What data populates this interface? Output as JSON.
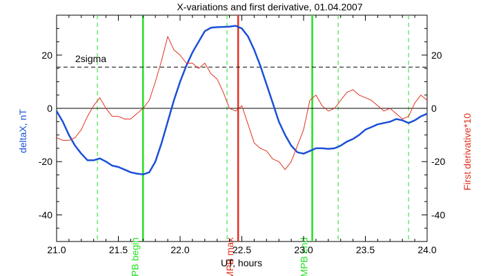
{
  "chart_data": {
    "type": "line",
    "title": "X-variations and first derivative, 01.04.2007",
    "xlabel": "UT, hours",
    "ylabel_left": "deltaX, nT",
    "ylabel_right": "First derivative*10",
    "xlim": [
      21.0,
      24.0
    ],
    "ylim": [
      -50,
      35
    ],
    "x_ticks": [
      21.0,
      21.5,
      22.0,
      22.5,
      23.0,
      23.5,
      24.0
    ],
    "x_tick_labels": [
      "21.0",
      "21.5",
      "22.0",
      "22.5",
      "23.0",
      "23.5",
      "24.0"
    ],
    "y_ticks": [
      -40,
      -20,
      0,
      20
    ],
    "y_tick_labels": [
      "-40",
      "-20",
      "0",
      "20"
    ],
    "grid": false,
    "colors": {
      "deltaX": "#1a4fd6",
      "derivative": "#e0301e",
      "mpb_begin_end": "#22e022",
      "mpb_max": "#e0301e",
      "zero_line": "#000000",
      "sigma_line": "#000000"
    },
    "series": [
      {
        "name": "deltaX",
        "x": [
          21.0,
          21.05,
          21.1,
          21.15,
          21.2,
          21.25,
          21.3,
          21.35,
          21.4,
          21.45,
          21.5,
          21.55,
          21.6,
          21.65,
          21.7,
          21.75,
          21.8,
          21.85,
          21.9,
          21.95,
          22.0,
          22.05,
          22.1,
          22.15,
          22.2,
          22.25,
          22.3,
          22.35,
          22.4,
          22.45,
          22.5,
          22.55,
          22.6,
          22.65,
          22.7,
          22.75,
          22.8,
          22.85,
          22.9,
          22.95,
          23.0,
          23.05,
          23.1,
          23.15,
          23.2,
          23.25,
          23.3,
          23.35,
          23.4,
          23.45,
          23.5,
          23.55,
          23.6,
          23.65,
          23.7,
          23.75,
          23.8,
          23.85,
          23.9,
          23.95,
          24.0
        ],
        "values": [
          -1,
          -5,
          -10,
          -14,
          -17,
          -19.5,
          -19.5,
          -18.8,
          -20,
          -21.5,
          -22,
          -23,
          -24,
          -24.5,
          -24.8,
          -24,
          -20,
          -13,
          -5,
          3,
          10,
          16,
          21,
          25,
          29,
          30.3,
          30.5,
          30.6,
          30.7,
          31,
          30,
          27,
          22,
          16,
          9,
          2,
          -5,
          -10,
          -14,
          -16.5,
          -17,
          -16,
          -15,
          -15,
          -15.2,
          -15,
          -14,
          -12.5,
          -11.5,
          -10,
          -8,
          -7,
          -6,
          -5.5,
          -5,
          -4,
          -4.5,
          -5.5,
          -4.5,
          -3,
          -2
        ]
      },
      {
        "name": "First derivative*10",
        "x": [
          21.0,
          21.05,
          21.1,
          21.15,
          21.2,
          21.25,
          21.3,
          21.35,
          21.4,
          21.45,
          21.5,
          21.55,
          21.6,
          21.65,
          21.7,
          21.75,
          21.8,
          21.85,
          21.9,
          21.95,
          22.0,
          22.05,
          22.1,
          22.15,
          22.2,
          22.25,
          22.3,
          22.35,
          22.4,
          22.45,
          22.5,
          22.55,
          22.6,
          22.65,
          22.7,
          22.75,
          22.8,
          22.85,
          22.9,
          22.95,
          23.0,
          23.05,
          23.1,
          23.15,
          23.2,
          23.25,
          23.3,
          23.35,
          23.4,
          23.45,
          23.5,
          23.55,
          23.6,
          23.65,
          23.7,
          23.75,
          23.8,
          23.85,
          23.9,
          23.95,
          24.0
        ],
        "values": [
          -11,
          -12,
          -12,
          -11,
          -8,
          -3,
          1,
          4,
          0,
          -3,
          -3,
          -4,
          -4,
          -2,
          0,
          3,
          10,
          18,
          27,
          22,
          20,
          17,
          17,
          15,
          17,
          13,
          11,
          6,
          0,
          -1,
          1,
          -6,
          -13,
          -15,
          -16,
          -19,
          -20,
          -23,
          -20,
          -14,
          -8,
          3,
          5,
          1,
          -1,
          0,
          3,
          6,
          7,
          5,
          4,
          3,
          1,
          -1,
          0,
          -2,
          -4,
          -3,
          2,
          5,
          3
        ]
      }
    ],
    "markers": [
      {
        "x": 21.33,
        "style": "dashed",
        "color": "mpb_begin_end"
      },
      {
        "x": 21.7,
        "style": "solid",
        "color": "mpb_begin_end",
        "label": "MPB begin"
      },
      {
        "x": 22.38,
        "style": "dashed",
        "color": "mpb_begin_end"
      },
      {
        "x": 22.47,
        "style": "solid",
        "color": "mpb_max",
        "label": "MPB max"
      },
      {
        "x": 23.07,
        "style": "solid",
        "color": "mpb_begin_end",
        "label": "MPB end"
      },
      {
        "x": 23.28,
        "style": "dashed",
        "color": "mpb_begin_end"
      },
      {
        "x": 23.85,
        "style": "dashed",
        "color": "mpb_begin_end"
      }
    ],
    "reference_lines": [
      {
        "y": 0,
        "style": "solid",
        "color": "zero_line"
      },
      {
        "y": 15.5,
        "style": "dashed",
        "color": "sigma_line",
        "label": "2sigma"
      }
    ]
  }
}
